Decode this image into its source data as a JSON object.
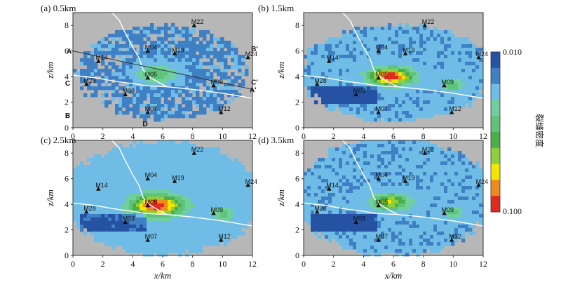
{
  "chart_data": [
    {
      "type": "heatmap",
      "title": "(a) 0.5km",
      "xlabel": "x/km",
      "ylabel": "z/km",
      "xlim": [
        0,
        12
      ],
      "ylim": [
        0,
        9
      ],
      "xticks": [
        "0",
        "2",
        "4",
        "6",
        "8",
        "10",
        "12"
      ],
      "yticks": [
        "0",
        "2",
        "4",
        "6",
        "8"
      ],
      "pattern": "sparse",
      "blobs": [
        {
          "x": 5.6,
          "y": 4.2,
          "sx": 1.2,
          "sy": 0.6,
          "peak": 0.055
        },
        {
          "x": 9.4,
          "y": 3.3,
          "sx": 0.5,
          "sy": 0.4,
          "peak": 0.03
        }
      ],
      "background_density": 0.027,
      "coverage": {
        "cx": 6.0,
        "cy": 4.3,
        "rx": 5.7,
        "ry": 3.7
      }
    },
    {
      "type": "heatmap",
      "title": "(b) 1.5km",
      "xlabel": "x/km",
      "ylabel": "z/km",
      "xlim": [
        0,
        12
      ],
      "ylim": [
        0,
        9
      ],
      "xticks": [
        "0",
        "2",
        "4",
        "6",
        "8",
        "10",
        "12"
      ],
      "yticks": [
        "0",
        "2",
        "4",
        "6",
        "8"
      ],
      "pattern": "smooth",
      "blobs": [
        {
          "x": 5.8,
          "y": 4.0,
          "sx": 1.3,
          "sy": 0.6,
          "peak": 0.1
        },
        {
          "x": 10.0,
          "y": 3.3,
          "sx": 0.55,
          "sy": 0.45,
          "peak": 0.055
        }
      ],
      "background_density": 0.029,
      "coverage": {
        "cx": 6.2,
        "cy": 4.3,
        "rx": 6.4,
        "ry": 3.8
      }
    },
    {
      "type": "heatmap",
      "title": "(c) 2.5km",
      "xlabel": "x/km",
      "ylabel": "z/km",
      "xlim": [
        0,
        12
      ],
      "ylim": [
        0,
        9
      ],
      "xticks": [
        "0",
        "2",
        "4",
        "6",
        "8",
        "10",
        "12"
      ],
      "yticks": [
        "0",
        "2",
        "4",
        "6",
        "8"
      ],
      "pattern": "smooth",
      "blobs": [
        {
          "x": 5.6,
          "y": 3.9,
          "sx": 1.5,
          "sy": 0.75,
          "peak": 0.1
        },
        {
          "x": 10.0,
          "y": 3.3,
          "sx": 0.65,
          "sy": 0.55,
          "peak": 0.05
        }
      ],
      "background_density": 0.03,
      "coverage": {
        "cx": 6.0,
        "cy": 4.5,
        "rx": 6.6,
        "ry": 4.4
      }
    },
    {
      "type": "heatmap",
      "title": "(d) 3.5km",
      "xlabel": "x/km",
      "ylabel": "z/km",
      "xlim": [
        0,
        12
      ],
      "ylim": [
        0,
        9
      ],
      "xticks": [
        "0",
        "2",
        "4",
        "6",
        "8",
        "10",
        "12"
      ],
      "yticks": [
        "0",
        "2",
        "4",
        "6",
        "8"
      ],
      "pattern": "smooth",
      "blobs": [
        {
          "x": 5.8,
          "y": 4.2,
          "sx": 1.1,
          "sy": 0.55,
          "peak": 0.075
        },
        {
          "x": 10.0,
          "y": 3.3,
          "sx": 0.55,
          "sy": 0.45,
          "peak": 0.05
        }
      ],
      "background_density": 0.029,
      "coverage": {
        "cx": 6.0,
        "cy": 4.6,
        "rx": 6.6,
        "ry": 4.6
      }
    }
  ],
  "stations": [
    {
      "name": "M22",
      "x": 8.1,
      "y": 8.0
    },
    {
      "name": "M04",
      "x": 5.0,
      "y": 6.0
    },
    {
      "name": "M19",
      "x": 6.8,
      "y": 5.8
    },
    {
      "name": "M24",
      "x": 11.7,
      "y": 5.5
    },
    {
      "name": "M14",
      "x": 1.7,
      "y": 5.2
    },
    {
      "name": "M05",
      "x": 5.0,
      "y": 3.9
    },
    {
      "name": "M09",
      "x": 9.4,
      "y": 3.3
    },
    {
      "name": "M28",
      "x": 0.9,
      "y": 3.4
    },
    {
      "name": "M03",
      "x": 3.5,
      "y": 2.6
    },
    {
      "name": "M07",
      "x": 5.0,
      "y": 1.2
    },
    {
      "name": "M12",
      "x": 9.9,
      "y": 1.2
    }
  ],
  "profiles": [
    {
      "name": "A",
      "start": [
        0,
        6.0
      ],
      "end": [
        12,
        3.0
      ],
      "start_label": "A",
      "end_label": "A'"
    },
    {
      "name": "B",
      "start_label": "B",
      "end_label": "B'",
      "start": [
        -0.1,
        1.0
      ],
      "end": [
        12.1,
        6.2
      ]
    },
    {
      "name": "C",
      "start_label": "C",
      "end_label": "C'",
      "start": [
        -0.1,
        3.5
      ],
      "end": [
        12.1,
        3.6
      ]
    },
    {
      "name": "D",
      "start_label": "D",
      "x": 4.8,
      "y": 0.1
    }
  ],
  "colorbar": {
    "title": "裂缝密度",
    "min_label": "0.010",
    "max_label": "0.100",
    "colors": [
      "#2652a3",
      "#3f7fc4",
      "#6fbde6",
      "#6fcf9d",
      "#5fc37a",
      "#4aae4a",
      "#8ecf3a",
      "#f3e500",
      "#ef8a1e",
      "#e02a20"
    ]
  },
  "colors": {
    "background": "#b7b7b7",
    "axis": "#333333",
    "curves": "#ffffff",
    "profile_line": "#333333"
  }
}
